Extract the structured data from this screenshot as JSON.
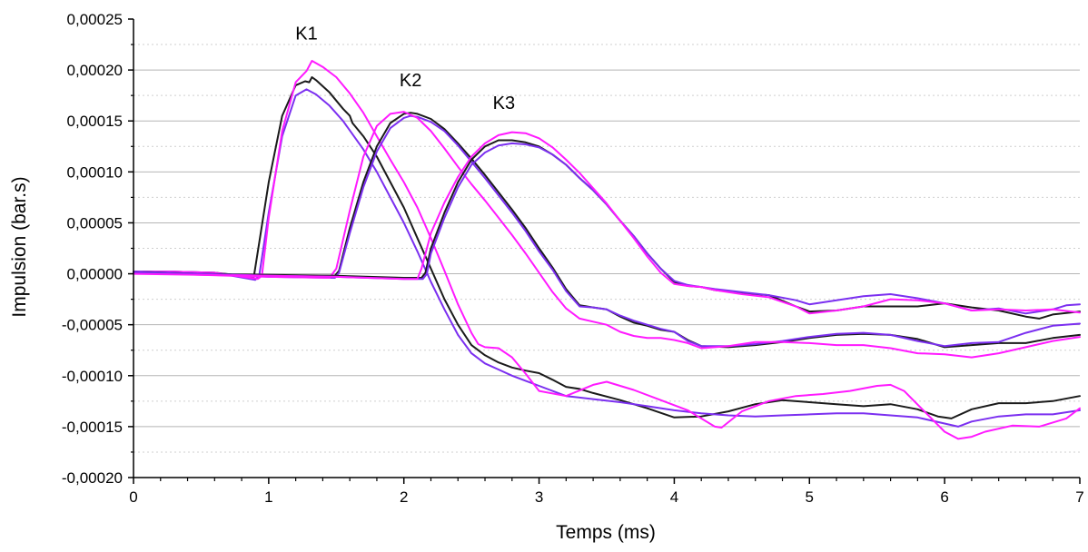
{
  "chart_data": {
    "type": "line",
    "xlabel": "Temps (ms)",
    "ylabel": "Impulsion (bar.s)",
    "xlim": [
      0,
      7
    ],
    "ylim": [
      -0.0002,
      0.00025
    ],
    "x_ticks": [
      0,
      1,
      2,
      3,
      4,
      5,
      6,
      7
    ],
    "x_tick_labels": [
      "0",
      "1",
      "2",
      "3",
      "4",
      "5",
      "6",
      "7"
    ],
    "y_ticks": [
      -0.0002,
      -0.00015,
      -0.0001,
      -5e-05,
      0,
      5e-05,
      0.0001,
      0.00015,
      0.0002,
      0.00025
    ],
    "y_tick_labels": [
      "-0,00020",
      "-0,00015",
      "-0,00010",
      "-0,00005",
      "0,00000",
      "0,00005",
      "0,00010",
      "0,00015",
      "0,00020",
      "0,00025"
    ],
    "grid": "horizontal major solid, minor dotted",
    "legend": "none",
    "annotations": [
      {
        "text": "K1",
        "x": 1.28,
        "y": 0.00023
      },
      {
        "text": "K2",
        "x": 2.05,
        "y": 0.000184
      },
      {
        "text": "K3",
        "x": 2.74,
        "y": 0.000162
      }
    ],
    "colors": {
      "black": "#1a1a1a",
      "violet": "#7b2ff0",
      "magenta": "#ff1aff"
    },
    "series": [
      {
        "group": "K1",
        "color": "black",
        "x": [
          0,
          0.3,
          0.6,
          0.89,
          1.0,
          1.1,
          1.2,
          1.27,
          1.3,
          1.32,
          1.35,
          1.45,
          1.55,
          1.6,
          1.62,
          1.7,
          1.8,
          1.9,
          2.0,
          2.1,
          2.2,
          2.3,
          2.4,
          2.5,
          2.6,
          2.7,
          2.8,
          2.9,
          3.0,
          3.1,
          3.2,
          3.3,
          3.4,
          3.6,
          3.8,
          4.0,
          4.2,
          4.4,
          4.6,
          4.8,
          5.0,
          5.2,
          5.4,
          5.6,
          5.8,
          5.95,
          6.05,
          6.2,
          6.4,
          6.6,
          6.8,
          7.0
        ],
        "y": [
          2e-06,
          2e-06,
          1e-06,
          -3e-06,
          9e-05,
          0.000155,
          0.000185,
          0.000189,
          0.000188,
          0.000193,
          0.00019,
          0.000178,
          0.000162,
          0.000155,
          0.000148,
          0.000135,
          0.000115,
          9e-05,
          6.5e-05,
          3.5e-05,
          5e-06,
          -2.5e-05,
          -5e-05,
          -7e-05,
          -8e-05,
          -8.7e-05,
          -9.2e-05,
          -9.5e-05,
          -9.75e-05,
          -0.000104,
          -0.000111,
          -0.000113,
          -0.000117,
          -0.000124,
          -0.000132,
          -0.000141,
          -0.00014,
          -0.000135,
          -0.000128,
          -0.000124,
          -0.000126,
          -0.000128,
          -0.00013,
          -0.000128,
          -0.000133,
          -0.00014,
          -0.000142,
          -0.000133,
          -0.000127,
          -0.000127,
          -0.000125,
          -0.00012
        ]
      },
      {
        "group": "K1",
        "color": "violet",
        "x": [
          0,
          0.3,
          0.6,
          0.9,
          0.93,
          1.0,
          1.1,
          1.2,
          1.28,
          1.35,
          1.45,
          1.55,
          1.7,
          1.8,
          1.9,
          2.0,
          2.1,
          2.2,
          2.3,
          2.4,
          2.5,
          2.6,
          2.7,
          2.8,
          2.9,
          3.0,
          3.2,
          3.4,
          3.6,
          3.8,
          4.0,
          4.2,
          4.4,
          4.6,
          4.8,
          5.0,
          5.2,
          5.4,
          5.6,
          5.8,
          6.0,
          6.1,
          6.2,
          6.4,
          6.6,
          6.8,
          7.0
        ],
        "y": [
          2e-06,
          2e-06,
          1e-06,
          -6e-06,
          -2e-06,
          6e-05,
          0.000135,
          0.000175,
          0.000181,
          0.000176,
          0.000165,
          0.00015,
          0.000122,
          0.0001,
          7.5e-05,
          5e-05,
          2.2e-05,
          -8e-06,
          -3.5e-05,
          -6e-05,
          -7.8e-05,
          -8.8e-05,
          -9.4e-05,
          -0.0001,
          -0.000105,
          -0.00011,
          -0.00012,
          -0.000123,
          -0.000126,
          -0.00013,
          -0.000134,
          -0.000137,
          -0.000139,
          -0.00014,
          -0.000139,
          -0.000138,
          -0.000137,
          -0.000137,
          -0.000139,
          -0.000141,
          -0.000147,
          -0.00015,
          -0.000145,
          -0.00014,
          -0.000138,
          -0.000138,
          -0.000134
        ]
      },
      {
        "group": "K1",
        "color": "magenta",
        "x": [
          0,
          0.3,
          0.6,
          0.92,
          0.95,
          1.0,
          1.1,
          1.2,
          1.28,
          1.32,
          1.4,
          1.5,
          1.6,
          1.7,
          1.8,
          1.9,
          2.0,
          2.1,
          2.2,
          2.3,
          2.4,
          2.5,
          2.55,
          2.6,
          2.7,
          2.8,
          2.9,
          3.0,
          3.2,
          3.4,
          3.5,
          3.7,
          3.9,
          4.1,
          4.3,
          4.35,
          4.5,
          4.7,
          4.9,
          5.1,
          5.3,
          5.5,
          5.6,
          5.7,
          5.85,
          6.0,
          6.1,
          6.2,
          6.3,
          6.5,
          6.7,
          6.9,
          7.0
        ],
        "y": [
          2e-06,
          2e-06,
          1e-06,
          -5e-06,
          -2e-06,
          5.5e-05,
          0.00014,
          0.000188,
          0.000199,
          0.000209,
          0.000203,
          0.000193,
          0.000177,
          0.000158,
          0.000135,
          0.000112,
          9e-05,
          6.5e-05,
          3.5e-05,
          3e-06,
          -3e-05,
          -5.8e-05,
          -6.9e-05,
          -7.2e-05,
          -7.3e-05,
          -8.2e-05,
          -9.8e-05,
          -0.000115,
          -0.00012,
          -0.000109,
          -0.000106,
          -0.000114,
          -0.000124,
          -0.000134,
          -0.00015,
          -0.000151,
          -0.000135,
          -0.000125,
          -0.00012,
          -0.000118,
          -0.000115,
          -0.00011,
          -0.000109,
          -0.000115,
          -0.000135,
          -0.000155,
          -0.000162,
          -0.00016,
          -0.000155,
          -0.000149,
          -0.00015,
          -0.000142,
          -0.000132
        ]
      },
      {
        "group": "K2",
        "color": "black",
        "x": [
          0,
          0.5,
          1.0,
          1.49,
          1.52,
          1.6,
          1.7,
          1.8,
          1.9,
          2.0,
          2.05,
          2.1,
          2.2,
          2.3,
          2.4,
          2.5,
          2.6,
          2.7,
          2.8,
          2.9,
          3.0,
          3.1,
          3.2,
          3.3,
          3.4,
          3.5,
          3.6,
          3.7,
          3.8,
          3.9,
          4.0,
          4.1,
          4.2,
          4.4,
          4.6,
          4.8,
          5.0,
          5.2,
          5.4,
          5.6,
          5.8,
          6.0,
          6.2,
          6.4,
          6.6,
          6.8,
          7.0
        ],
        "y": [
          2e-06,
          0,
          -2e-06,
          -2e-06,
          3e-06,
          4.5e-05,
          9e-05,
          0.000125,
          0.000148,
          0.000157,
          0.000158,
          0.000157,
          0.000152,
          0.000142,
          0.000128,
          0.000113,
          9.7e-05,
          8e-05,
          6.3e-05,
          4.5e-05,
          2.5e-05,
          6e-06,
          -1.5e-05,
          -3.1e-05,
          -3.3e-05,
          -3.5e-05,
          -4.2e-05,
          -4.8e-05,
          -5.1e-05,
          -5.5e-05,
          -5.7e-05,
          -6.5e-05,
          -7.1e-05,
          -7.2e-05,
          -7e-05,
          -6.7e-05,
          -6.3e-05,
          -6e-05,
          -5.9e-05,
          -6e-05,
          -6.4e-05,
          -7.2e-05,
          -7e-05,
          -6.8e-05,
          -6.8e-05,
          -6.3e-05,
          -6e-05
        ]
      },
      {
        "group": "K2",
        "color": "violet",
        "x": [
          0,
          0.5,
          1.0,
          1.49,
          1.52,
          1.6,
          1.7,
          1.8,
          1.9,
          2.0,
          2.05,
          2.1,
          2.2,
          2.3,
          2.4,
          2.5,
          2.6,
          2.7,
          2.8,
          2.9,
          3.0,
          3.1,
          3.2,
          3.3,
          3.4,
          3.5,
          3.6,
          3.7,
          3.8,
          3.9,
          4.0,
          4.1,
          4.2,
          4.4,
          4.6,
          4.8,
          5.0,
          5.2,
          5.4,
          5.6,
          5.8,
          6.0,
          6.2,
          6.4,
          6.6,
          6.8,
          7.0
        ],
        "y": [
          2e-06,
          0,
          -3e-06,
          -4e-06,
          1e-06,
          4e-05,
          8.5e-05,
          0.00012,
          0.000143,
          0.000153,
          0.000155,
          0.000154,
          0.000149,
          0.00014,
          0.000126,
          0.00011,
          9.4e-05,
          7.7e-05,
          6e-05,
          4.2e-05,
          2.2e-05,
          4e-06,
          -1.7e-05,
          -3.2e-05,
          -3.3e-05,
          -3.5e-05,
          -4.1e-05,
          -4.6e-05,
          -5e-05,
          -5.4e-05,
          -5.7e-05,
          -6.6e-05,
          -7.1e-05,
          -7.1e-05,
          -6.9e-05,
          -6.6e-05,
          -6.2e-05,
          -5.9e-05,
          -5.8e-05,
          -6e-05,
          -6.6e-05,
          -7.1e-05,
          -6.8e-05,
          -6.7e-05,
          -5.8e-05,
          -5.1e-05,
          -4.9e-05
        ]
      },
      {
        "group": "K2",
        "color": "magenta",
        "x": [
          0,
          0.5,
          1.0,
          1.45,
          1.5,
          1.6,
          1.7,
          1.8,
          1.9,
          2.0,
          2.1,
          2.2,
          2.3,
          2.4,
          2.5,
          2.6,
          2.7,
          2.8,
          2.9,
          3.0,
          3.1,
          3.2,
          3.3,
          3.4,
          3.5,
          3.6,
          3.7,
          3.8,
          3.9,
          4.0,
          4.1,
          4.2,
          4.4,
          4.6,
          4.8,
          5.0,
          5.2,
          5.4,
          5.6,
          5.8,
          6.0,
          6.2,
          6.4,
          6.6,
          6.8,
          7.0
        ],
        "y": [
          1e-06,
          -1e-06,
          -3e-06,
          -4e-06,
          5e-06,
          6.2e-05,
          0.000115,
          0.000145,
          0.000157,
          0.000159,
          0.000153,
          0.00014,
          0.000123,
          0.000105,
          8.8e-05,
          7.2e-05,
          5.5e-05,
          3.8e-05,
          2e-05,
          1e-06,
          -1.8e-05,
          -3.4e-05,
          -4.4e-05,
          -4.7e-05,
          -5e-05,
          -5.7e-05,
          -6.1e-05,
          -6.3e-05,
          -6.3e-05,
          -6.5e-05,
          -6.8e-05,
          -7.3e-05,
          -7.1e-05,
          -6.7e-05,
          -6.7e-05,
          -6.8e-05,
          -7e-05,
          -7e-05,
          -7.3e-05,
          -7.8e-05,
          -7.9e-05,
          -8.2e-05,
          -7.8e-05,
          -7.2e-05,
          -6.6e-05,
          -6.2e-05
        ]
      },
      {
        "group": "K3",
        "color": "black",
        "x": [
          0,
          0.5,
          1.0,
          1.5,
          2.0,
          2.13,
          2.16,
          2.2,
          2.3,
          2.4,
          2.5,
          2.6,
          2.7,
          2.8,
          2.9,
          3.0,
          3.1,
          3.2,
          3.3,
          3.4,
          3.5,
          3.6,
          3.7,
          3.8,
          3.9,
          4.0,
          4.1,
          4.2,
          4.3,
          4.5,
          4.7,
          4.9,
          5.0,
          5.2,
          5.4,
          5.6,
          5.8,
          6.0,
          6.2,
          6.4,
          6.6,
          6.7,
          6.8,
          7.0
        ],
        "y": [
          1e-06,
          0,
          -1e-06,
          -2e-06,
          -4e-06,
          -4e-06,
          1e-06,
          2.5e-05,
          6e-05,
          9e-05,
          0.000112,
          0.000125,
          0.000131,
          0.000131,
          0.000129,
          0.000125,
          0.000117,
          0.000107,
          9.4e-05,
          8.2e-05,
          6.8e-05,
          5.2e-05,
          3.7e-05,
          2e-05,
          5e-06,
          -8e-06,
          -1.2e-05,
          -1.3e-05,
          -1.6e-05,
          -1.9e-05,
          -2.1e-05,
          -3.2e-05,
          -3.7e-05,
          -3.6e-05,
          -3.2e-05,
          -3.2e-05,
          -3.2e-05,
          -2.9e-05,
          -3.3e-05,
          -3.6e-05,
          -4.2e-05,
          -4.4e-05,
          -4e-05,
          -3.7e-05
        ]
      },
      {
        "group": "K3",
        "color": "violet",
        "x": [
          0,
          0.5,
          1.0,
          1.5,
          2.0,
          2.14,
          2.17,
          2.2,
          2.3,
          2.4,
          2.5,
          2.6,
          2.7,
          2.8,
          2.9,
          3.0,
          3.1,
          3.2,
          3.3,
          3.4,
          3.5,
          3.6,
          3.7,
          3.8,
          3.9,
          4.0,
          4.1,
          4.2,
          4.3,
          4.5,
          4.7,
          4.9,
          5.0,
          5.2,
          5.4,
          5.6,
          5.8,
          6.0,
          6.2,
          6.4,
          6.6,
          6.8,
          6.9,
          7.0
        ],
        "y": [
          1e-06,
          0,
          -2e-06,
          -3e-06,
          -5e-06,
          -5e-06,
          0,
          2e-05,
          5.5e-05,
          8.5e-05,
          0.000107,
          0.000119,
          0.000126,
          0.000128,
          0.000127,
          0.000124,
          0.000117,
          0.000107,
          9.4e-05,
          8.2e-05,
          6.8e-05,
          5.2e-05,
          3.7e-05,
          2e-05,
          5e-06,
          -7e-06,
          -1.1e-05,
          -1.3e-05,
          -1.5e-05,
          -1.8e-05,
          -2.1e-05,
          -2.6e-05,
          -3e-05,
          -2.6e-05,
          -2.2e-05,
          -2e-05,
          -2.4e-05,
          -2.9e-05,
          -3.6e-05,
          -3.4e-05,
          -3.9e-05,
          -3.5e-05,
          -3.1e-05,
          -3e-05
        ]
      },
      {
        "group": "K3",
        "color": "magenta",
        "x": [
          0,
          0.5,
          1.0,
          1.5,
          2.0,
          2.1,
          2.13,
          2.2,
          2.3,
          2.4,
          2.5,
          2.6,
          2.7,
          2.8,
          2.9,
          3.0,
          3.1,
          3.2,
          3.3,
          3.4,
          3.5,
          3.6,
          3.7,
          3.8,
          3.9,
          4.0,
          4.1,
          4.2,
          4.3,
          4.5,
          4.7,
          4.9,
          5.0,
          5.2,
          5.4,
          5.6,
          5.8,
          6.0,
          6.2,
          6.4,
          6.6,
          6.8,
          7.0
        ],
        "y": [
          0,
          -1e-06,
          -2e-06,
          -3e-06,
          -5e-06,
          -5e-06,
          5e-06,
          4e-05,
          7e-05,
          9.5e-05,
          0.000115,
          0.000128,
          0.000136,
          0.000139,
          0.000138,
          0.000133,
          0.000124,
          0.000112,
          9.9e-05,
          8.4e-05,
          6.9e-05,
          5.2e-05,
          3.5e-05,
          1.7e-05,
          1e-06,
          -1e-05,
          -1.2e-05,
          -1.3e-05,
          -1.6e-05,
          -2e-05,
          -2.3e-05,
          -3.2e-05,
          -3.9e-05,
          -3.6e-05,
          -3.2e-05,
          -2.5e-05,
          -2.6e-05,
          -2.9e-05,
          -3.6e-05,
          -3.5e-05,
          -3.6e-05,
          -3.5e-05,
          -3.8e-05
        ]
      }
    ]
  }
}
